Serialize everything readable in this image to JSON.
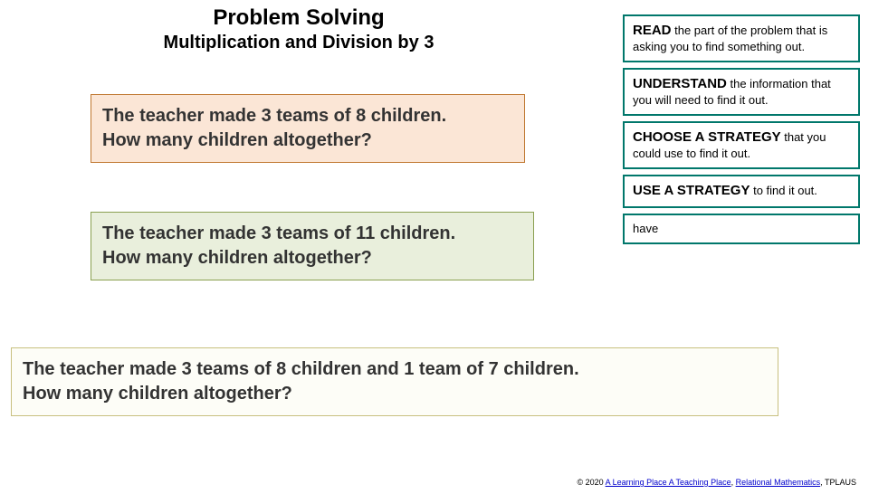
{
  "heading": {
    "title": "Problem Solving",
    "subtitle": "Multiplication and Division by 3"
  },
  "problems": {
    "p1": {
      "line1": "The teacher made 3 teams of 8 children.",
      "line2": "How many children altogether?",
      "bg_color": "#fbe6d6",
      "border_color": "#c07830"
    },
    "p2": {
      "line1": "The teacher made 3 teams of 11 children.",
      "line2": "How many children altogether?",
      "bg_color": "#e9efdc",
      "border_color": "#8aa050"
    },
    "p3": {
      "line1": "The teacher made 3 teams of 8 children and 1 team of 7 children.",
      "line2": "How many children altogether?",
      "bg_color": "#fdfdf7",
      "border_color": "#c8c080"
    }
  },
  "sidebar": {
    "s1": {
      "lead": "READ",
      "rest": " the part of the problem that is asking you to find something out."
    },
    "s2": {
      "lead": "UNDERSTAND",
      "rest": " the information that you will need to find it out."
    },
    "s3": {
      "lead": "CHOOSE A STRATEGY",
      "rest": " that you could use to find it out."
    },
    "s4": {
      "lead": "USE A STRATEGY",
      "rest": " to find it out."
    },
    "s5": {
      "lead": "",
      "rest": "have"
    },
    "border_color": "#00776b"
  },
  "footer": {
    "copyright": "© 2020 ",
    "link1": "A Learning Place A Teaching Place",
    "sep": ", ",
    "link2": "Relational Mathematics",
    "tail": ", TPLAUS"
  }
}
